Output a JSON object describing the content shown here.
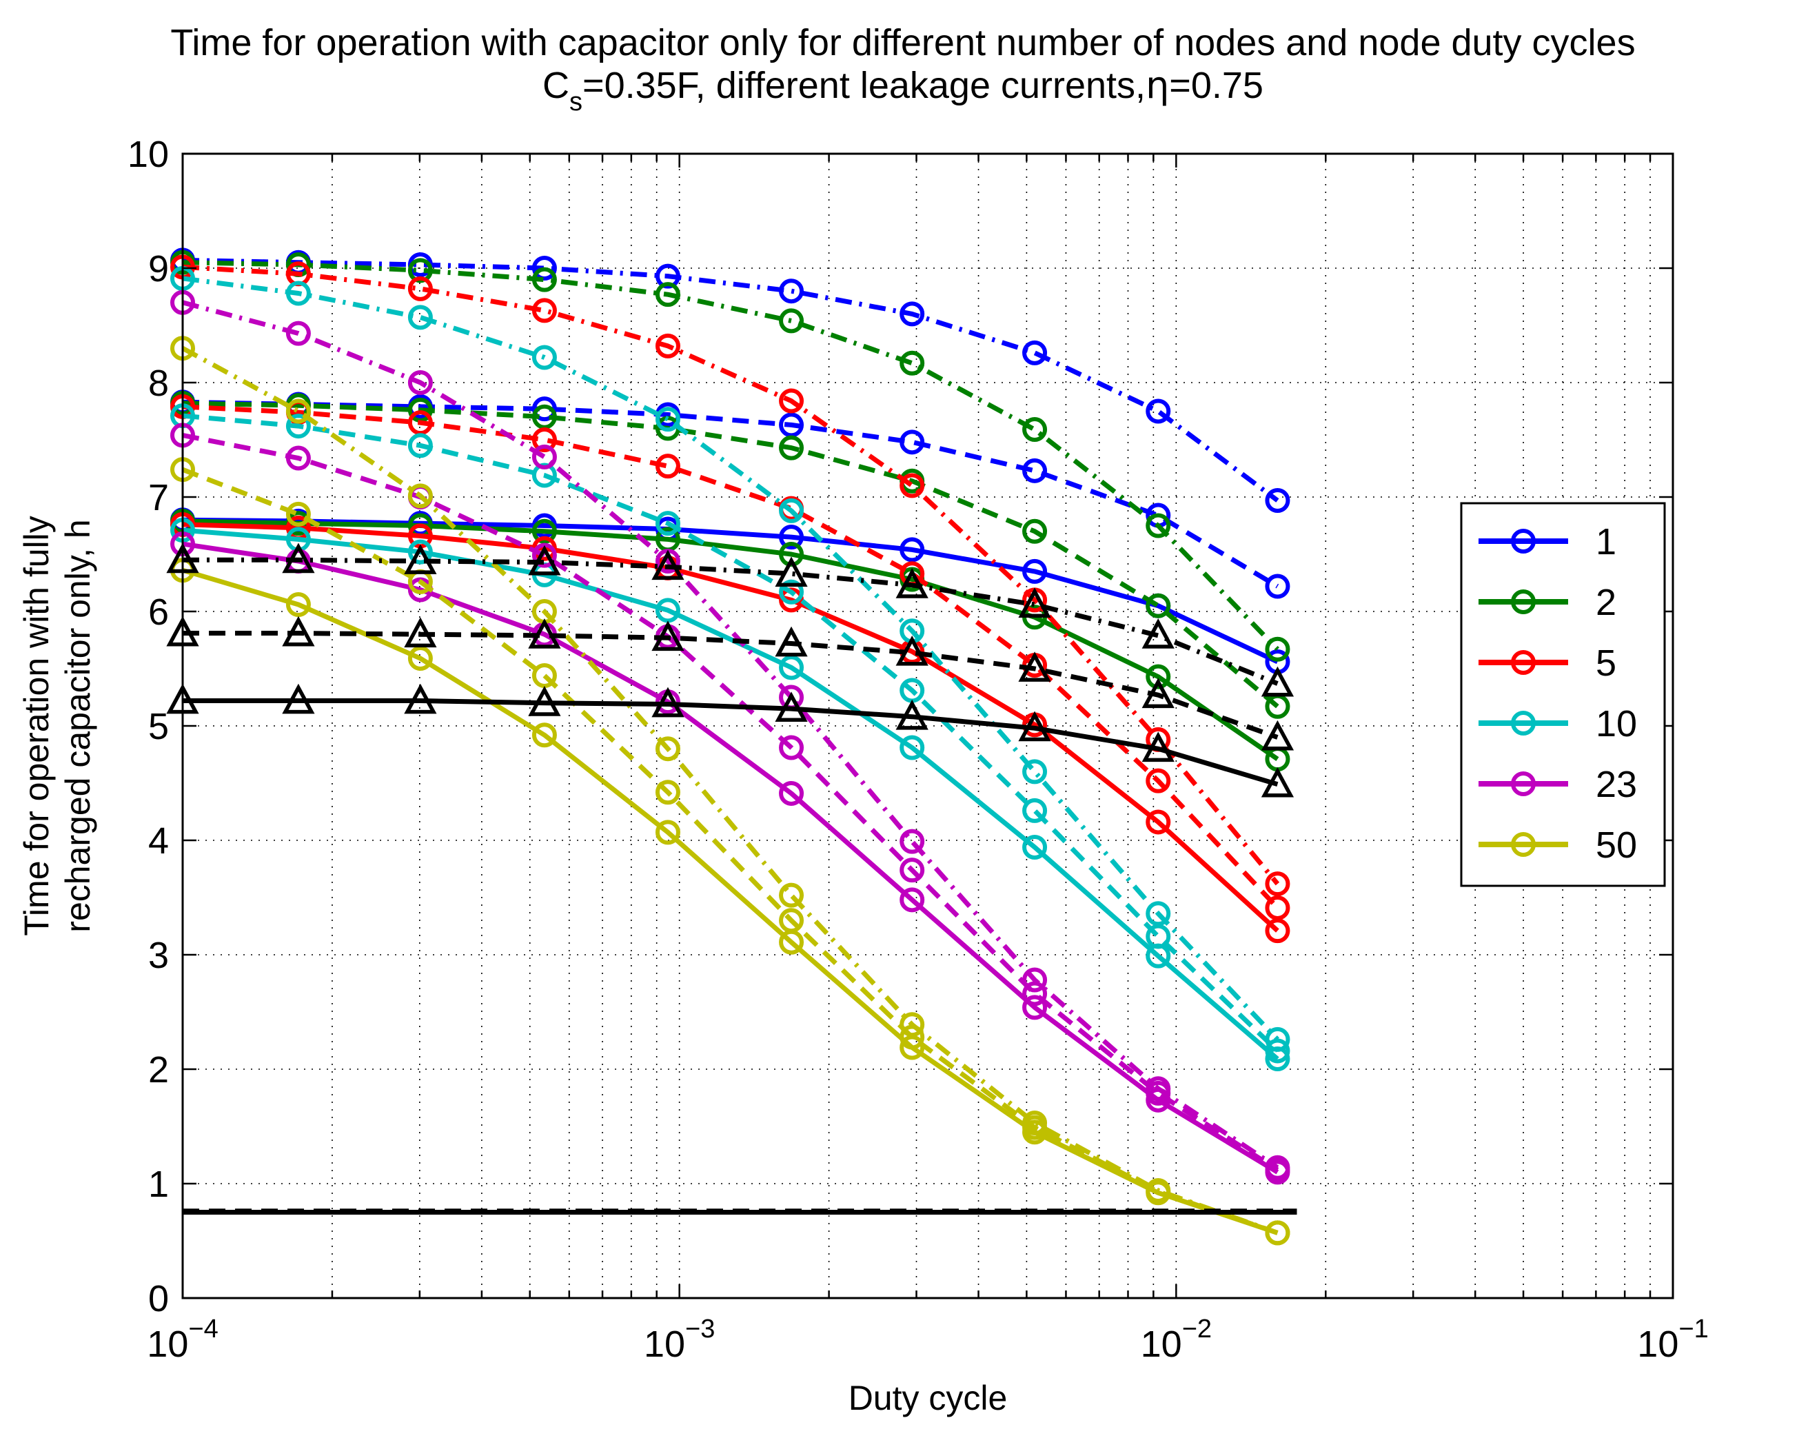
{
  "chart_data": {
    "type": "line",
    "title": "Time for operation with capacitor only for different number of nodes and node duty cycles",
    "subtitle": {
      "prefix": "C",
      "subscript": "s",
      "middle": "=0.35F, different leakage currents,",
      "eta": "η",
      "suffix": "=0.75"
    },
    "xlabel": "Duty cycle",
    "ylabel": [
      "Time for operation with fully",
      "recharged capacitor only, h"
    ],
    "xscale": "log",
    "xlim": [
      0.0001,
      0.1
    ],
    "ylim": [
      0,
      10
    ],
    "grid": true,
    "legend_position": "right",
    "x_ticks": [
      {
        "value": 0.0001,
        "base": "10",
        "exp": "−4"
      },
      {
        "value": 0.001,
        "base": "10",
        "exp": "−3"
      },
      {
        "value": 0.01,
        "base": "10",
        "exp": "−2"
      },
      {
        "value": 0.1,
        "base": "10",
        "exp": "−1"
      }
    ],
    "y_ticks": [
      "0",
      "1",
      "2",
      "3",
      "4",
      "5",
      "6",
      "7",
      "8",
      "9",
      "10"
    ],
    "x": [
      0.0001,
      0.000171,
      0.000301,
      0.000535,
      0.000948,
      0.00168,
      0.00294,
      0.00519,
      0.0092,
      0.016
    ],
    "legend": [
      {
        "label": "1",
        "color": "#0000ff"
      },
      {
        "label": "2",
        "color": "#008000"
      },
      {
        "label": "5",
        "color": "#ff0000"
      },
      {
        "label": "10",
        "color": "#00bfbf"
      },
      {
        "label": "23",
        "color": "#bf00bf"
      },
      {
        "label": "50",
        "color": "#bfbf00"
      }
    ],
    "series": [
      {
        "name": "1",
        "style": "dashdot",
        "marker": "circle",
        "color": "#0000ff",
        "values": [
          9.07,
          9.05,
          9.03,
          9.0,
          8.93,
          8.8,
          8.6,
          8.26,
          7.75,
          6.97
        ]
      },
      {
        "name": "1",
        "style": "dashed",
        "marker": "circle",
        "color": "#0000ff",
        "values": [
          7.83,
          7.81,
          7.79,
          7.77,
          7.72,
          7.63,
          7.48,
          7.23,
          6.84,
          6.22
        ]
      },
      {
        "name": "1",
        "style": "solid",
        "marker": "circle",
        "color": "#0000ff",
        "values": [
          6.8,
          6.79,
          6.77,
          6.75,
          6.72,
          6.65,
          6.54,
          6.35,
          6.05,
          5.56
        ]
      },
      {
        "name": "2",
        "style": "dashdot",
        "marker": "circle",
        "color": "#008000",
        "values": [
          9.05,
          9.03,
          8.98,
          8.9,
          8.77,
          8.54,
          8.17,
          7.59,
          6.75,
          5.67
        ]
      },
      {
        "name": "2",
        "style": "dashed",
        "marker": "circle",
        "color": "#008000",
        "values": [
          7.82,
          7.8,
          7.76,
          7.7,
          7.6,
          7.43,
          7.14,
          6.7,
          6.05,
          5.17
        ]
      },
      {
        "name": "2",
        "style": "solid",
        "marker": "circle",
        "color": "#008000",
        "values": [
          6.79,
          6.77,
          6.75,
          6.7,
          6.63,
          6.5,
          6.28,
          5.95,
          5.43,
          4.71
        ]
      },
      {
        "name": "5",
        "style": "dashdot",
        "marker": "circle",
        "color": "#ff0000",
        "values": [
          9.01,
          8.95,
          8.82,
          8.63,
          8.32,
          7.84,
          7.1,
          6.1,
          4.88,
          3.62
        ]
      },
      {
        "name": "5",
        "style": "dashed",
        "marker": "circle",
        "color": "#ff0000",
        "values": [
          7.79,
          7.74,
          7.65,
          7.5,
          7.27,
          6.9,
          6.33,
          5.53,
          4.52,
          3.41
        ]
      },
      {
        "name": "5",
        "style": "solid",
        "marker": "circle",
        "color": "#ff0000",
        "values": [
          6.76,
          6.73,
          6.66,
          6.55,
          6.38,
          6.1,
          5.65,
          5.01,
          4.16,
          3.21
        ]
      },
      {
        "name": "10",
        "style": "dashdot",
        "marker": "circle",
        "color": "#00bfbf",
        "values": [
          8.91,
          8.78,
          8.57,
          8.22,
          7.68,
          6.88,
          5.83,
          4.6,
          3.36,
          2.26
        ]
      },
      {
        "name": "10",
        "style": "dashed",
        "marker": "circle",
        "color": "#00bfbf",
        "values": [
          7.71,
          7.62,
          7.45,
          7.19,
          6.77,
          6.17,
          5.31,
          4.26,
          3.16,
          2.16
        ]
      },
      {
        "name": "10",
        "style": "solid",
        "marker": "circle",
        "color": "#00bfbf",
        "values": [
          6.71,
          6.63,
          6.52,
          6.32,
          6.01,
          5.51,
          4.81,
          3.94,
          2.99,
          2.09
        ]
      },
      {
        "name": "23",
        "style": "dashdot",
        "marker": "circle",
        "color": "#bf00bf",
        "values": [
          8.7,
          8.43,
          8.0,
          7.35,
          6.44,
          5.25,
          3.99,
          2.78,
          1.83,
          1.14
        ]
      },
      {
        "name": "23",
        "style": "dashed",
        "marker": "circle",
        "color": "#bf00bf",
        "values": [
          7.54,
          7.34,
          7.0,
          6.49,
          5.78,
          4.81,
          3.74,
          2.66,
          1.79,
          1.12
        ]
      },
      {
        "name": "23",
        "style": "solid",
        "marker": "circle",
        "color": "#bf00bf",
        "values": [
          6.59,
          6.44,
          6.19,
          5.8,
          5.21,
          4.41,
          3.48,
          2.54,
          1.73,
          1.1
        ]
      },
      {
        "name": "50",
        "style": "dashdot",
        "marker": "circle",
        "color": "#bfbf00",
        "values": [
          8.3,
          7.75,
          7.01,
          6.0,
          4.8,
          3.52,
          2.39,
          1.53,
          0.94,
          0.57
        ]
      },
      {
        "name": "50",
        "style": "dashed",
        "marker": "circle",
        "color": "#bfbf00",
        "values": [
          7.24,
          6.85,
          6.26,
          5.44,
          4.42,
          3.3,
          2.28,
          1.49,
          0.93,
          0.57
        ]
      },
      {
        "name": "50",
        "style": "solid",
        "marker": "circle",
        "color": "#bfbf00",
        "values": [
          6.36,
          6.06,
          5.59,
          4.92,
          4.07,
          3.11,
          2.19,
          1.45,
          0.92,
          0.57
        ]
      },
      {
        "name": "",
        "style": "dashdot",
        "marker": "triangle",
        "color": "#000000",
        "values": [
          6.45,
          6.45,
          6.44,
          6.43,
          6.39,
          6.33,
          6.23,
          6.06,
          5.79,
          5.37
        ]
      },
      {
        "name": "",
        "style": "dashed",
        "marker": "triangle",
        "color": "#000000",
        "values": [
          5.81,
          5.81,
          5.8,
          5.79,
          5.77,
          5.72,
          5.64,
          5.5,
          5.27,
          4.9
        ]
      },
      {
        "name": "",
        "style": "solid",
        "marker": "triangle",
        "color": "#000000",
        "values": [
          5.22,
          5.22,
          5.22,
          5.2,
          5.19,
          5.15,
          5.08,
          4.98,
          4.8,
          4.49
        ]
      },
      {
        "name": "",
        "style": "solid",
        "marker": "none",
        "color": "#000000",
        "values": [
          0.75,
          0.75,
          0.75,
          0.75,
          0.75,
          0.75,
          0.75,
          0.75,
          0.75,
          0.75
        ]
      },
      {
        "name": "",
        "style": "dashed",
        "marker": "none",
        "color": "#000000",
        "values": [
          0.76,
          0.76,
          0.76,
          0.76,
          0.76,
          0.76,
          0.76,
          0.76,
          0.76,
          0.76
        ]
      }
    ]
  }
}
